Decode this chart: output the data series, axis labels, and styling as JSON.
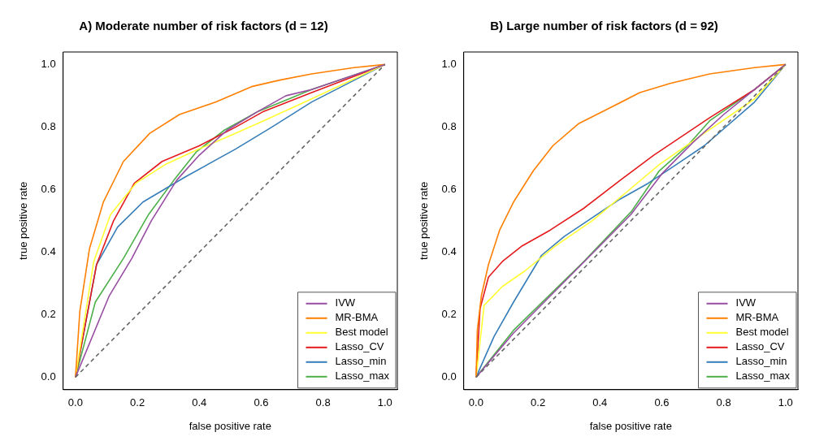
{
  "chart_data": [
    {
      "type": "line",
      "title": "A) Moderate number of risk factors (d = 12)",
      "xlabel": "false positive rate",
      "ylabel": "true positive rate",
      "xlim": [
        -0.04,
        1.04
      ],
      "ylim": [
        -0.04,
        1.04
      ],
      "xticks": [
        {
          "value": 0,
          "label": "0.0"
        },
        {
          "value": 0.2,
          "label": "0.2"
        },
        {
          "value": 0.4,
          "label": "0.4"
        },
        {
          "value": 0.6,
          "label": "0.6"
        },
        {
          "value": 0.8,
          "label": "0.8"
        },
        {
          "value": 1,
          "label": "1.0"
        }
      ],
      "yticks": [
        {
          "value": 0,
          "label": "0.0"
        },
        {
          "value": 0.2,
          "label": "0.2"
        },
        {
          "value": 0.4,
          "label": "0.4"
        },
        {
          "value": 0.6,
          "label": "0.6"
        },
        {
          "value": 0.8,
          "label": "0.8"
        },
        {
          "value": 1,
          "label": "1.0"
        }
      ],
      "grid": false,
      "legend": "bottom right",
      "series": [
        {
          "color": "#666666",
          "line_style": "dashed",
          "x": [
            0,
            1
          ],
          "values": [
            0,
            1
          ]
        },
        {
          "name": "IVW",
          "color": "#984ea3",
          "x": [
            0,
            0.109,
            0.182,
            0.245,
            0.327,
            0.4,
            0.49,
            0.59,
            0.68,
            0.763,
            1
          ],
          "values": [
            0,
            0.26,
            0.38,
            0.5,
            0.63,
            0.71,
            0.79,
            0.85,
            0.9,
            0.92,
            1
          ]
        },
        {
          "name": "MR-BMA",
          "color": "#ff7f00",
          "x": [
            0,
            0.014,
            0.045,
            0.09,
            0.155,
            0.24,
            0.336,
            0.454,
            0.572,
            0.66,
            0.763,
            0.9,
            1
          ],
          "values": [
            0,
            0.21,
            0.41,
            0.56,
            0.69,
            0.78,
            0.84,
            0.88,
            0.93,
            0.95,
            0.97,
            0.99,
            1
          ]
        },
        {
          "name": "Best model",
          "color": "#ffff33",
          "x": [
            0,
            0.059,
            0.113,
            0.195,
            0.29,
            0.4,
            0.518,
            0.608,
            0.763,
            1
          ],
          "values": [
            0,
            0.37,
            0.52,
            0.62,
            0.68,
            0.73,
            0.78,
            0.82,
            0.89,
            1
          ]
        },
        {
          "name": "Lasso_CV",
          "color": "#e41a1c",
          "x": [
            0,
            0.068,
            0.123,
            0.19,
            0.28,
            0.4,
            0.518,
            0.608,
            0.763,
            1
          ],
          "values": [
            0,
            0.36,
            0.5,
            0.62,
            0.69,
            0.74,
            0.8,
            0.85,
            0.91,
            1
          ]
        },
        {
          "name": "Lasso_min",
          "color": "#377eb8",
          "x": [
            0,
            0.068,
            0.136,
            0.218,
            0.354,
            0.518,
            0.635,
            0.763,
            1
          ],
          "values": [
            0,
            0.36,
            0.48,
            0.56,
            0.64,
            0.73,
            0.8,
            0.88,
            1
          ]
        },
        {
          "name": "Lasso_max",
          "color": "#4daf4a",
          "x": [
            0,
            0.064,
            0.155,
            0.236,
            0.318,
            0.39,
            0.481,
            0.59,
            0.69,
            0.763,
            1
          ],
          "values": [
            0,
            0.24,
            0.38,
            0.52,
            0.63,
            0.72,
            0.79,
            0.85,
            0.89,
            0.92,
            1
          ]
        }
      ]
    },
    {
      "type": "line",
      "title": "B) Large number of risk factors (d = 92)",
      "xlabel": "false positive rate",
      "ylabel": "true positive rate",
      "xlim": [
        -0.04,
        1.04
      ],
      "ylim": [
        -0.04,
        1.04
      ],
      "xticks": [
        {
          "value": 0,
          "label": "0.0"
        },
        {
          "value": 0.2,
          "label": "0.2"
        },
        {
          "value": 0.4,
          "label": "0.4"
        },
        {
          "value": 0.6,
          "label": "0.6"
        },
        {
          "value": 0.8,
          "label": "0.8"
        },
        {
          "value": 1,
          "label": "1.0"
        }
      ],
      "yticks": [
        {
          "value": 0,
          "label": "0.0"
        },
        {
          "value": 0.2,
          "label": "0.2"
        },
        {
          "value": 0.4,
          "label": "0.4"
        },
        {
          "value": 0.6,
          "label": "0.6"
        },
        {
          "value": 0.8,
          "label": "0.8"
        },
        {
          "value": 1,
          "label": "1.0"
        }
      ],
      "grid": false,
      "legend": "bottom right",
      "series": [
        {
          "color": "#666666",
          "line_style": "dashed",
          "x": [
            0,
            1
          ],
          "values": [
            0,
            1
          ]
        },
        {
          "name": "IVW",
          "color": "#984ea3",
          "x": [
            0,
            0.12,
            0.35,
            0.5,
            0.6,
            0.7,
            0.8,
            0.9,
            1
          ],
          "values": [
            0,
            0.14,
            0.37,
            0.52,
            0.65,
            0.75,
            0.84,
            0.92,
            1
          ]
        },
        {
          "name": "MR-BMA",
          "color": "#ff7f00",
          "x": [
            0,
            0.004,
            0.017,
            0.04,
            0.076,
            0.121,
            0.185,
            0.248,
            0.33,
            0.43,
            0.529,
            0.629,
            0.755,
            0.9,
            1
          ],
          "values": [
            0,
            0.15,
            0.26,
            0.36,
            0.47,
            0.56,
            0.66,
            0.74,
            0.81,
            0.86,
            0.91,
            0.94,
            0.97,
            0.99,
            1
          ]
        },
        {
          "name": "Best model",
          "color": "#ffff33",
          "x": [
            0,
            0.026,
            0.085,
            0.158,
            0.257,
            0.375,
            0.484,
            0.592,
            0.737,
            0.9,
            1
          ],
          "values": [
            0,
            0.23,
            0.29,
            0.34,
            0.42,
            0.5,
            0.59,
            0.68,
            0.78,
            0.89,
            1
          ]
        },
        {
          "name": "Lasso_CV",
          "color": "#e41a1c",
          "x": [
            0,
            0.013,
            0.04,
            0.085,
            0.149,
            0.239,
            0.348,
            0.466,
            0.574,
            0.665,
            0.755,
            0.9,
            1
          ],
          "values": [
            0,
            0.22,
            0.32,
            0.37,
            0.42,
            0.47,
            0.54,
            0.63,
            0.71,
            0.77,
            0.83,
            0.92,
            1
          ]
        },
        {
          "name": "Lasso_min",
          "color": "#377eb8",
          "x": [
            0,
            0.058,
            0.121,
            0.212,
            0.285,
            0.375,
            0.466,
            0.556,
            0.647,
            0.737,
            0.9,
            1
          ],
          "values": [
            0,
            0.13,
            0.24,
            0.39,
            0.45,
            0.51,
            0.57,
            0.62,
            0.68,
            0.74,
            0.88,
            1
          ]
        },
        {
          "name": "Lasso_max",
          "color": "#4daf4a",
          "x": [
            0,
            0.121,
            0.348,
            0.502,
            0.592,
            0.683,
            0.755,
            0.9,
            1
          ],
          "values": [
            0,
            0.15,
            0.37,
            0.53,
            0.66,
            0.74,
            0.82,
            0.92,
            1
          ]
        }
      ]
    }
  ]
}
